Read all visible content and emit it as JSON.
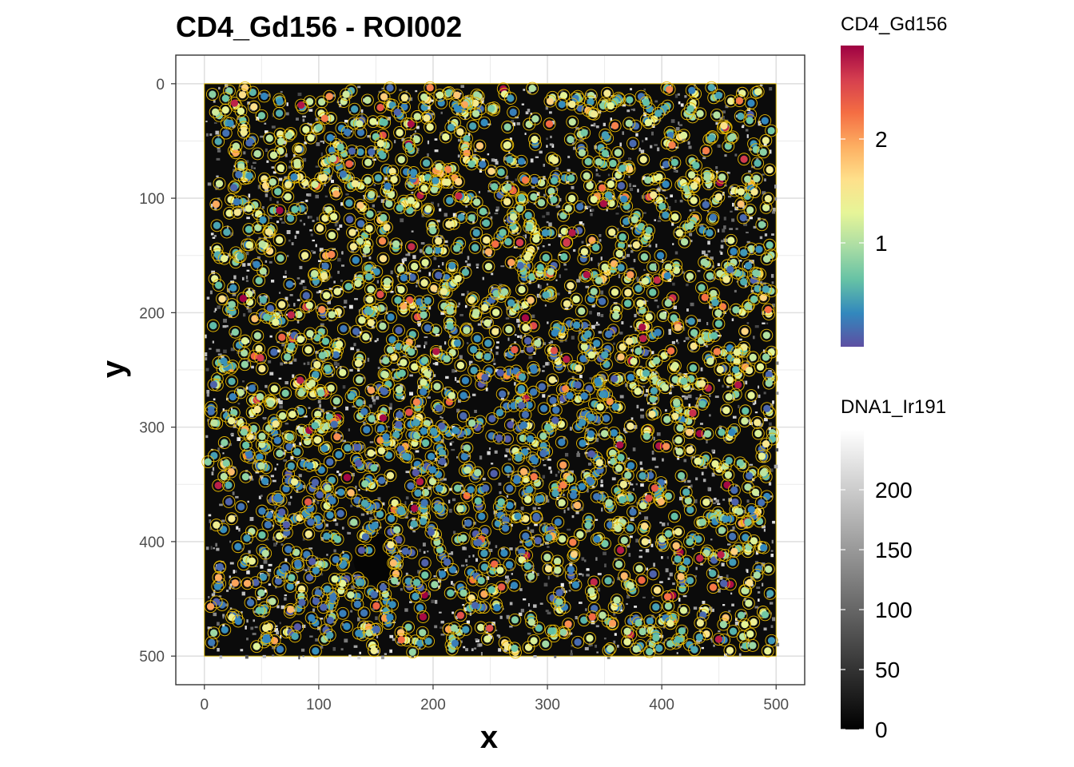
{
  "chart_data": {
    "type": "scatter",
    "title": "CD4_Gd156 - ROI002",
    "xlabel": "x",
    "ylabel": "y",
    "xlim": [
      -25,
      525
    ],
    "ylim": [
      -25,
      525
    ],
    "y_axis_reversed": true,
    "x_ticks": [
      0,
      100,
      200,
      300,
      400,
      500
    ],
    "y_ticks": [
      0,
      100,
      200,
      300,
      400,
      500
    ],
    "grid": true,
    "background_image": {
      "channel": "DNA1_Ir191",
      "extent": {
        "x": [
          0,
          500
        ],
        "y": [
          0,
          500
        ]
      },
      "description": "grayscale nuclear stain intensity image underlying the cell overlay"
    },
    "cell_outline_color": "#e6b800",
    "points": {
      "count_shown": "approx. 2000 cell centroids",
      "color_variable": "CD4_Gd156",
      "value_range": [
        0,
        2.9
      ],
      "pattern": "lower values (blue) concentrated in a diagonal band from lower-left toward the center; higher values (yellow/red) scattered near edges and upper-left"
    },
    "legends": [
      {
        "title": "CD4_Gd156",
        "type": "colorbar",
        "palette": "Spectral (reversed)",
        "range": [
          0,
          2.9
        ],
        "breaks": [
          1,
          2
        ],
        "labels": [
          "1",
          "2"
        ],
        "colors": [
          "#5e4fa2",
          "#3288bd",
          "#66c2a5",
          "#abdda4",
          "#e6f598",
          "#fee08b",
          "#fdae61",
          "#f46d43",
          "#d53e4f",
          "#9e0142"
        ]
      },
      {
        "title": "DNA1_Ir191",
        "type": "colorbar",
        "palette": "grayscale",
        "range": [
          0,
          250
        ],
        "breaks": [
          0,
          50,
          100,
          150,
          200
        ],
        "labels": [
          "0",
          "50",
          "100",
          "150",
          "200"
        ],
        "colors": [
          "#000000",
          "#ffffff"
        ]
      }
    ]
  }
}
